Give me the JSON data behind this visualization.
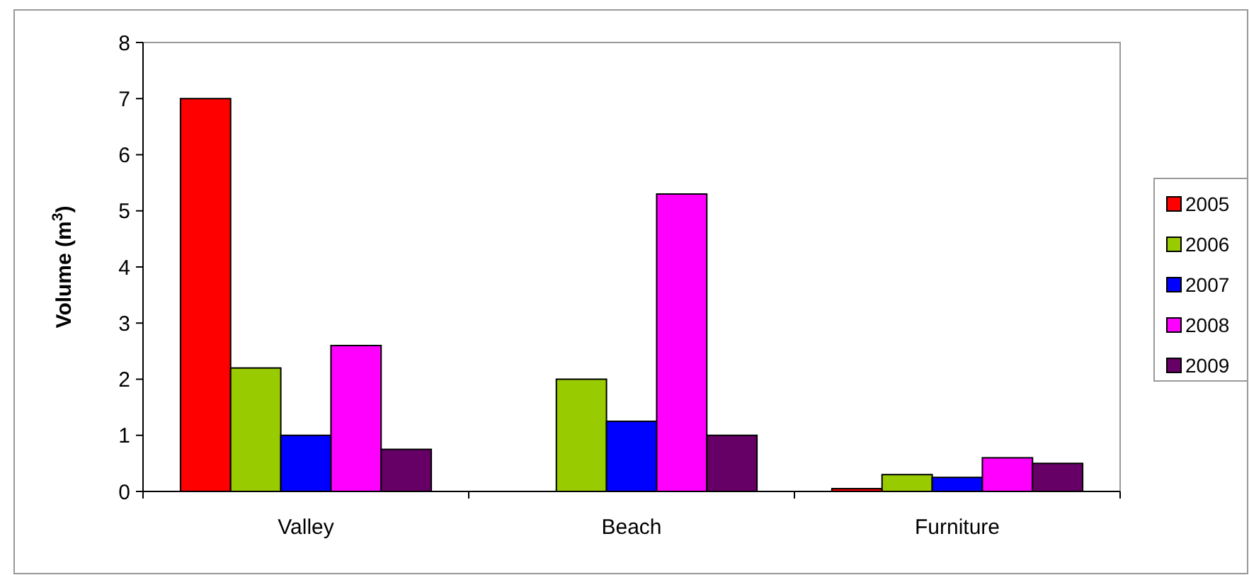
{
  "chart_data": {
    "type": "bar",
    "ylabel": "Volume (m$^{3}$)",
    "categories": [
      "Valley",
      "Beach",
      "Furniture"
    ],
    "series": [
      {
        "name": "2005",
        "color": "#ff0000",
        "values": [
          7,
          0,
          0.05
        ]
      },
      {
        "name": "2006",
        "color": "#99cc00",
        "values": [
          2.2,
          2,
          0.3
        ]
      },
      {
        "name": "2007",
        "color": "#0000ff",
        "values": [
          1,
          1.25,
          0.25
        ]
      },
      {
        "name": "2008",
        "color": "#ff00ff",
        "values": [
          2.6,
          5.3,
          0.6
        ]
      },
      {
        "name": "2009",
        "color": "#660066",
        "values": [
          0.75,
          1,
          0.5
        ]
      }
    ],
    "ylim": [
      0,
      8
    ],
    "yticks": [
      0,
      1,
      2,
      3,
      4,
      5,
      6,
      7,
      8
    ],
    "grid": false,
    "legend": "right"
  }
}
